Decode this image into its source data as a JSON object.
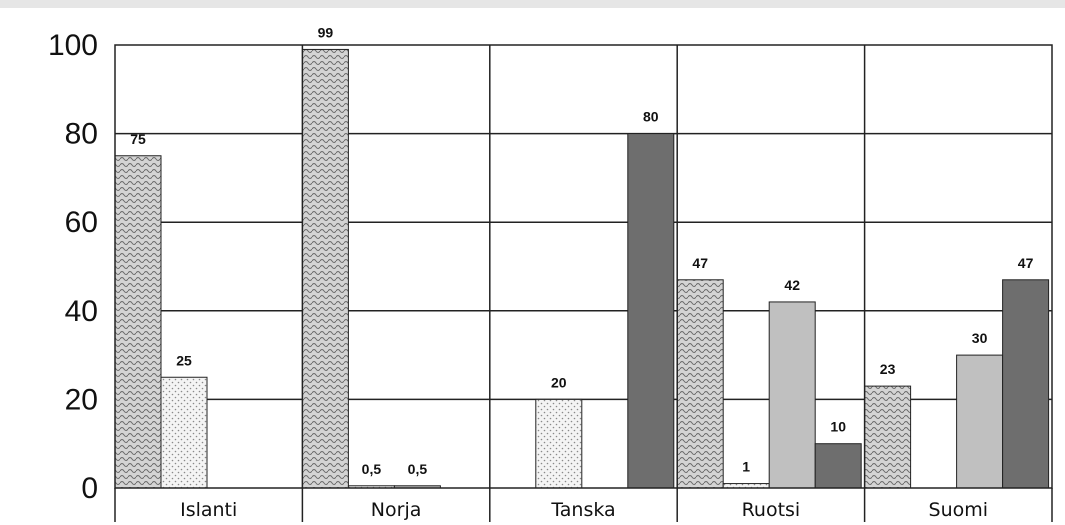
{
  "chart_data": {
    "type": "bar",
    "title": "",
    "xlabel": "",
    "ylabel": "",
    "ylim": [
      0,
      100
    ],
    "yticks": [
      0,
      20,
      40,
      60,
      80,
      100
    ],
    "grid": true,
    "legend": "none",
    "categories": [
      "Islanti",
      "Norja",
      "Tanska",
      "Ruotsi",
      "Suomi"
    ],
    "series": [
      {
        "color": "#c8c8c8",
        "pattern": "wave-hatch",
        "values": [
          75,
          99,
          null,
          47,
          23
        ],
        "labels": [
          "75",
          "99",
          "",
          "47",
          "23"
        ]
      },
      {
        "color": "#f1f1f1",
        "pattern": "dots",
        "values": [
          25,
          0.5,
          20,
          1,
          null
        ],
        "labels": [
          "25",
          "0,5",
          "20",
          "1",
          ""
        ]
      },
      {
        "color": "#c0c0c0",
        "pattern": "solid",
        "values": [
          null,
          0.5,
          null,
          42,
          30
        ],
        "labels": [
          "",
          "0,5",
          "",
          "42",
          "30"
        ]
      },
      {
        "color": "#6e6e6e",
        "pattern": "solid",
        "values": [
          null,
          null,
          80,
          10,
          47
        ],
        "labels": [
          "",
          "",
          "80",
          "10",
          "47"
        ]
      }
    ]
  }
}
